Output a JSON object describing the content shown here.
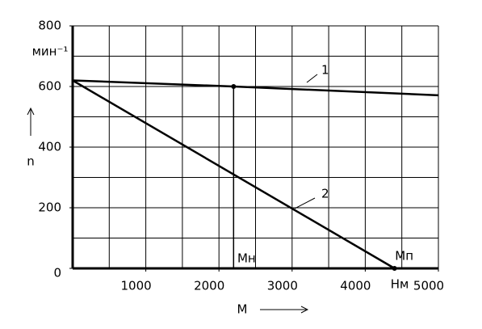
{
  "chart_data": {
    "type": "line",
    "x_label": "M",
    "y_label": "n",
    "y_unit": "мин⁻¹",
    "x_unit": "Нм",
    "xlim": [
      0,
      5000
    ],
    "ylim": [
      0,
      800
    ],
    "xticks": [
      1000,
      2000,
      3000,
      4000,
      5000
    ],
    "yticks": [
      0,
      200,
      400,
      600,
      800
    ],
    "x_grid_step": 500,
    "y_grid_step": 100,
    "grid": true,
    "series": [
      {
        "name": "1",
        "color": "#000000",
        "x": [
          0,
          2200,
          5000
        ],
        "values": [
          620,
          600,
          571
        ]
      },
      {
        "name": "2",
        "color": "#000000",
        "x": [
          0,
          4400
        ],
        "values": [
          620,
          0
        ]
      }
    ],
    "annotations": [
      {
        "text": "Мн",
        "x": 2200,
        "y": 600
      },
      {
        "text": "Мп",
        "x": 4400,
        "y": 0
      }
    ]
  }
}
